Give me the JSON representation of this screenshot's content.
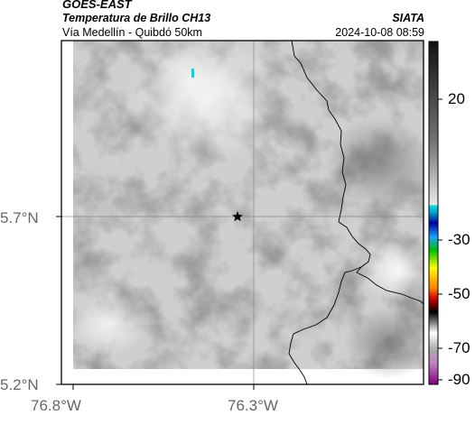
{
  "header": {
    "satellite": "GOES-EAST",
    "product": "Temperatura de Brillo CH13",
    "region": "Vía Medellín - Quibdó 50km",
    "organization": "SIATA",
    "datetime": "2024-10-08 08:59"
  },
  "map": {
    "x_ticks": [
      "76.8°W",
      "76.3°W"
    ],
    "y_ticks": [
      "5.7°N",
      "5.2°N"
    ],
    "colorbar_ticks": [
      "20",
      "-30",
      "-50",
      "-70",
      "-90"
    ],
    "colors": {
      "background_light": "#e4e4e4",
      "background_dark": "#8a8a8a",
      "boundary": "#000000",
      "gridline": "#888888",
      "cold_spot": "#00d8e0"
    },
    "marker": "star-icon"
  }
}
